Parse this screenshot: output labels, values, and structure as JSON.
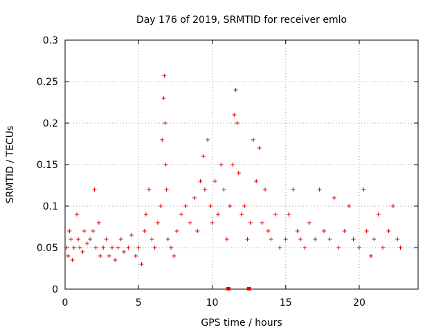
{
  "chart_data": {
    "type": "scatter",
    "title": "Day 176 of 2019, SRMTID for receiver emlo",
    "xlabel": "GPS time / hours",
    "ylabel": "SRMTID / TECUs",
    "xlim": [
      0,
      24
    ],
    "ylim": [
      0,
      0.3
    ],
    "xticks": [
      0,
      5,
      10,
      15,
      20
    ],
    "xtick_labels": [
      "0",
      "5",
      "10",
      "15",
      "20"
    ],
    "yticks": [
      0,
      0.05,
      0.1,
      0.15,
      0.2,
      0.25,
      0.3
    ],
    "ytick_labels": [
      "0",
      "0.05",
      "0.1",
      "0.15",
      "0.2",
      "0.25",
      "0.3"
    ],
    "grid": true,
    "marker": "plus",
    "color": "#e00000",
    "series": [
      {
        "name": "SRMTID",
        "x": [
          0.1,
          0.2,
          0.3,
          0.4,
          0.5,
          0.6,
          0.8,
          0.9,
          1.0,
          1.2,
          1.3,
          1.5,
          1.7,
          1.9,
          2.0,
          2.1,
          2.3,
          2.4,
          2.6,
          2.8,
          3.0,
          3.2,
          3.4,
          3.6,
          3.8,
          4.0,
          4.3,
          4.5,
          4.8,
          5.0,
          5.2,
          5.4,
          5.5,
          5.7,
          5.9,
          6.1,
          6.3,
          6.5,
          6.6,
          6.7,
          6.75,
          6.8,
          6.85,
          6.9,
          7.0,
          7.2,
          7.4,
          7.6,
          7.9,
          8.2,
          8.5,
          8.8,
          9.0,
          9.2,
          9.4,
          9.5,
          9.7,
          9.9,
          10.0,
          10.2,
          10.4,
          10.6,
          10.8,
          11.0,
          11.2,
          11.4,
          11.5,
          11.6,
          11.7,
          11.8,
          12.0,
          12.2,
          12.4,
          12.6,
          12.8,
          13.0,
          13.2,
          13.4,
          13.6,
          13.8,
          14.0,
          14.3,
          14.6,
          15.0,
          15.2,
          15.5,
          15.8,
          16.0,
          16.3,
          16.6,
          17.0,
          17.3,
          17.6,
          18.0,
          18.3,
          18.6,
          19.0,
          19.3,
          19.6,
          20.0,
          20.3,
          20.5,
          20.8,
          21.0,
          21.3,
          21.6,
          22.0,
          22.3,
          22.6,
          22.8,
          11.1,
          12.5
        ],
        "y": [
          0.05,
          0.04,
          0.07,
          0.06,
          0.035,
          0.05,
          0.09,
          0.06,
          0.05,
          0.045,
          0.07,
          0.055,
          0.06,
          0.07,
          0.12,
          0.05,
          0.08,
          0.04,
          0.05,
          0.06,
          0.04,
          0.05,
          0.035,
          0.05,
          0.06,
          0.045,
          0.05,
          0.065,
          0.04,
          0.05,
          0.03,
          0.07,
          0.09,
          0.12,
          0.06,
          0.05,
          0.08,
          0.1,
          0.18,
          0.23,
          0.257,
          0.2,
          0.15,
          0.12,
          0.06,
          0.05,
          0.04,
          0.07,
          0.09,
          0.1,
          0.08,
          0.11,
          0.07,
          0.13,
          0.16,
          0.12,
          0.18,
          0.1,
          0.08,
          0.13,
          0.09,
          0.15,
          0.12,
          0.06,
          0.1,
          0.15,
          0.21,
          0.24,
          0.2,
          0.14,
          0.09,
          0.1,
          0.06,
          0.08,
          0.18,
          0.13,
          0.17,
          0.08,
          0.12,
          0.07,
          0.06,
          0.09,
          0.05,
          0.06,
          0.09,
          0.12,
          0.07,
          0.06,
          0.05,
          0.08,
          0.06,
          0.12,
          0.07,
          0.06,
          0.11,
          0.05,
          0.07,
          0.1,
          0.06,
          0.05,
          0.12,
          0.07,
          0.04,
          0.06,
          0.09,
          0.05,
          0.07,
          0.1,
          0.06,
          0.05,
          0,
          0
        ]
      }
    ]
  }
}
